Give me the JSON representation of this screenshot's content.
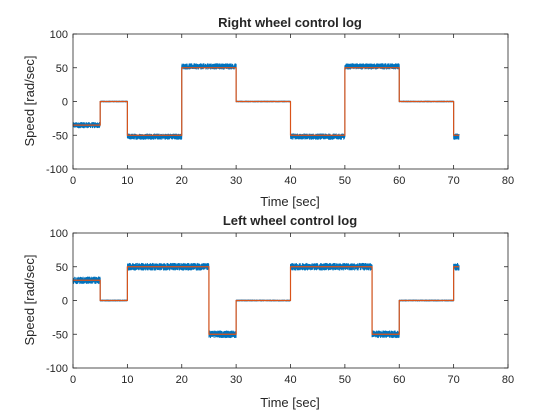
{
  "chart_data": [
    {
      "type": "line",
      "title": "Right wheel control log",
      "xlabel": "Time [sec]",
      "ylabel": "Speed [rad/sec]",
      "xlim": [
        0,
        80
      ],
      "ylim": [
        -100,
        100
      ],
      "xticks": [
        0,
        10,
        20,
        30,
        40,
        50,
        60,
        70,
        80
      ],
      "yticks": [
        -100,
        -50,
        0,
        50,
        100
      ],
      "grid": false,
      "series": [
        {
          "color": "#0072BD",
          "noise": 4,
          "x": [
            0,
            5,
            5,
            10,
            10,
            20,
            20,
            30,
            30,
            40,
            40,
            50,
            50,
            60,
            60,
            70,
            70,
            71
          ],
          "y": [
            -35,
            -35,
            0,
            0,
            -52,
            -52,
            52,
            52,
            0,
            0,
            -52,
            -52,
            52,
            52,
            0,
            0,
            -52,
            -52
          ]
        },
        {
          "color": "#D95319",
          "noise": 0,
          "x": [
            0,
            5,
            5,
            10,
            10,
            20,
            20,
            30,
            30,
            40,
            40,
            50,
            50,
            60,
            60,
            70,
            70,
            71
          ],
          "y": [
            -35,
            -35,
            0,
            0,
            -50,
            -50,
            50,
            50,
            0,
            0,
            -50,
            -50,
            50,
            50,
            0,
            0,
            -50,
            -50
          ]
        }
      ]
    },
    {
      "type": "line",
      "title": "Left wheel control log",
      "xlabel": "Time [sec]",
      "ylabel": "Speed [rad/sec]",
      "xlim": [
        0,
        80
      ],
      "ylim": [
        -100,
        100
      ],
      "xticks": [
        0,
        10,
        20,
        30,
        40,
        50,
        60,
        70,
        80
      ],
      "yticks": [
        -100,
        -50,
        0,
        50,
        100
      ],
      "grid": false,
      "series": [
        {
          "color": "#0072BD",
          "noise": 5,
          "x": [
            0,
            5,
            5,
            10,
            10,
            25,
            25,
            30,
            30,
            40,
            40,
            55,
            55,
            60,
            60,
            70,
            70,
            71
          ],
          "y": [
            30,
            30,
            0,
            0,
            50,
            50,
            -50,
            -50,
            0,
            0,
            50,
            50,
            -50,
            -50,
            0,
            0,
            50,
            50
          ]
        },
        {
          "color": "#D95319",
          "noise": 0,
          "x": [
            0,
            5,
            5,
            10,
            10,
            25,
            25,
            30,
            30,
            40,
            40,
            55,
            55,
            60,
            60,
            70,
            70,
            71
          ],
          "y": [
            30,
            30,
            0,
            0,
            50,
            50,
            -50,
            -50,
            0,
            0,
            50,
            50,
            -50,
            -50,
            0,
            0,
            50,
            50
          ]
        }
      ]
    }
  ]
}
